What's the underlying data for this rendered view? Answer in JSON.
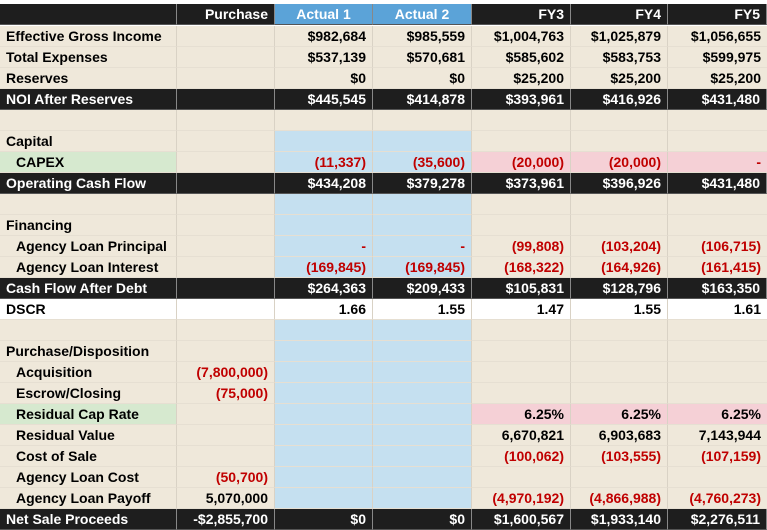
{
  "header": {
    "corner": "",
    "columns": [
      "Purchase",
      "Actual 1",
      "Actual 2",
      "FY3",
      "FY4",
      "FY5"
    ]
  },
  "rows": {
    "egi": {
      "label": "Effective Gross Income",
      "v": [
        "",
        "$982,684",
        "$985,559",
        "$1,004,763",
        "$1,025,879",
        "$1,056,655"
      ]
    },
    "total_expenses": {
      "label": "Total Expenses",
      "v": [
        "",
        "$537,139",
        "$570,681",
        "$585,602",
        "$583,753",
        "$599,975"
      ]
    },
    "reserves": {
      "label": "Reserves",
      "v": [
        "",
        "$0",
        "$0",
        "$25,200",
        "$25,200",
        "$25,200"
      ]
    },
    "noi": {
      "label": "NOI After Reserves",
      "v": [
        "",
        "$445,545",
        "$414,878",
        "$393,961",
        "$416,926",
        "$431,480"
      ]
    },
    "capital": {
      "label": "Capital"
    },
    "capex": {
      "label": "CAPEX",
      "v": [
        "",
        "(11,337)",
        "(35,600)",
        "(20,000)",
        "(20,000)",
        "-"
      ]
    },
    "ocf": {
      "label": "Operating Cash Flow",
      "v": [
        "",
        "$434,208",
        "$379,278",
        "$373,961",
        "$396,926",
        "$431,480"
      ]
    },
    "financing": {
      "label": "Financing"
    },
    "loan_principal": {
      "label": "Agency Loan Principal",
      "v": [
        "",
        "-",
        "-",
        "(99,808)",
        "(103,204)",
        "(106,715)"
      ]
    },
    "loan_interest": {
      "label": "Agency Loan Interest",
      "v": [
        "",
        "(169,845)",
        "(169,845)",
        "(168,322)",
        "(164,926)",
        "(161,415)"
      ]
    },
    "cfad": {
      "label": "Cash Flow After Debt",
      "v": [
        "",
        "$264,363",
        "$209,433",
        "$105,831",
        "$128,796",
        "$163,350"
      ]
    },
    "dscr": {
      "label": "DSCR",
      "v": [
        "",
        "1.66",
        "1.55",
        "1.47",
        "1.55",
        "1.61"
      ]
    },
    "purchase_disp": {
      "label": "Purchase/Disposition"
    },
    "acquisition": {
      "label": "Acquisition",
      "v": [
        "(7,800,000)",
        "",
        "",
        "",
        "",
        ""
      ]
    },
    "escrow": {
      "label": "Escrow/Closing",
      "v": [
        "(75,000)",
        "",
        "",
        "",
        "",
        ""
      ]
    },
    "residual_cap": {
      "label": "Residual Cap Rate",
      "v": [
        "",
        "",
        "",
        "6.25%",
        "6.25%",
        "6.25%"
      ]
    },
    "residual_value": {
      "label": "Residual Value",
      "v": [
        "",
        "",
        "",
        "6,670,821",
        "6,903,683",
        "7,143,944"
      ]
    },
    "cost_of_sale": {
      "label": "Cost of Sale",
      "v": [
        "",
        "",
        "",
        "(100,062)",
        "(103,555)",
        "(107,159)"
      ]
    },
    "loan_cost": {
      "label": "Agency Loan Cost",
      "v": [
        "(50,700)",
        "",
        "",
        "",
        "",
        ""
      ]
    },
    "loan_payoff": {
      "label": "Agency Loan Payoff",
      "v": [
        "5,070,000",
        "",
        "",
        "(4,970,192)",
        "(4,866,988)",
        "(4,760,273)"
      ]
    },
    "net_sale": {
      "label": "Net Sale Proceeds",
      "v": [
        "-$2,855,700",
        "$0",
        "$0",
        "$1,600,567",
        "$1,933,140",
        "$2,276,511"
      ]
    }
  },
  "colors": {
    "header_blue": "#5ba3d8",
    "actual_blue": "#c5e0f0",
    "tan": "#efe8da",
    "dark": "#1e1e1e",
    "negative": "#c00000",
    "pink": "#f5d0d6",
    "green": "#d6e9cf"
  }
}
